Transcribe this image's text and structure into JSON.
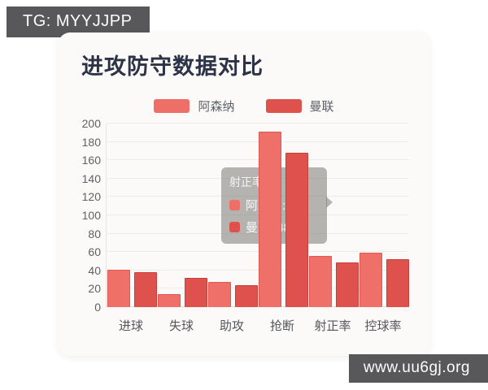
{
  "badges": {
    "top_left": "TG: MYYJJPP",
    "bottom_right": "www.uu6gj.org"
  },
  "chart_data": {
    "type": "bar",
    "title": "进攻防守数据对比",
    "categories": [
      "进球",
      "失球",
      "助攻",
      "抢断",
      "射正率",
      "控球率"
    ],
    "series": [
      {
        "name": "阿森纳",
        "color": "#ee6f68",
        "values": [
          40,
          13,
          27,
          190,
          55,
          58
        ]
      },
      {
        "name": "曼联",
        "color": "#df514d",
        "values": [
          37,
          31,
          23,
          167,
          48,
          51
        ]
      }
    ],
    "ylim": [
      0,
      200
    ],
    "ytick_step": 20,
    "grid": true,
    "legend_position": "top"
  },
  "tooltip": {
    "title": "射正率",
    "rows": [
      {
        "label": "阿森纳",
        "value": 55,
        "text": "阿森纳: 55",
        "color": "#ee6f68"
      },
      {
        "label": "曼联",
        "value": 48,
        "text": "曼联: 48",
        "color": "#df514d"
      }
    ]
  }
}
